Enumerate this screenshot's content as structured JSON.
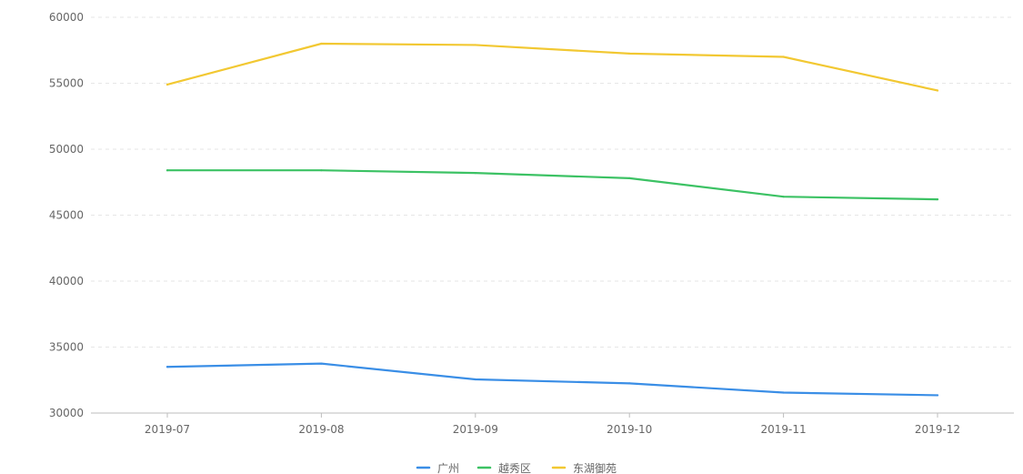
{
  "chart_data": {
    "type": "line",
    "x": [
      "2019-07",
      "2019-08",
      "2019-09",
      "2019-10",
      "2019-11",
      "2019-12"
    ],
    "ylim": [
      30000,
      60000
    ],
    "yticks": [
      30000,
      35000,
      40000,
      45000,
      50000,
      55000,
      60000
    ],
    "grid": true,
    "legend_position": "bottom-center",
    "series": [
      {
        "name": "广州",
        "color": "#3a8ee6",
        "values": [
          33500,
          33750,
          32550,
          32250,
          31550,
          31350
        ]
      },
      {
        "name": "越秀区",
        "color": "#3cc264",
        "values": [
          48400,
          48400,
          48200,
          47800,
          46400,
          46200
        ]
      },
      {
        "name": "东湖御苑",
        "color": "#f2c832",
        "values": [
          54900,
          58000,
          57900,
          57250,
          57000,
          54450
        ]
      }
    ]
  }
}
